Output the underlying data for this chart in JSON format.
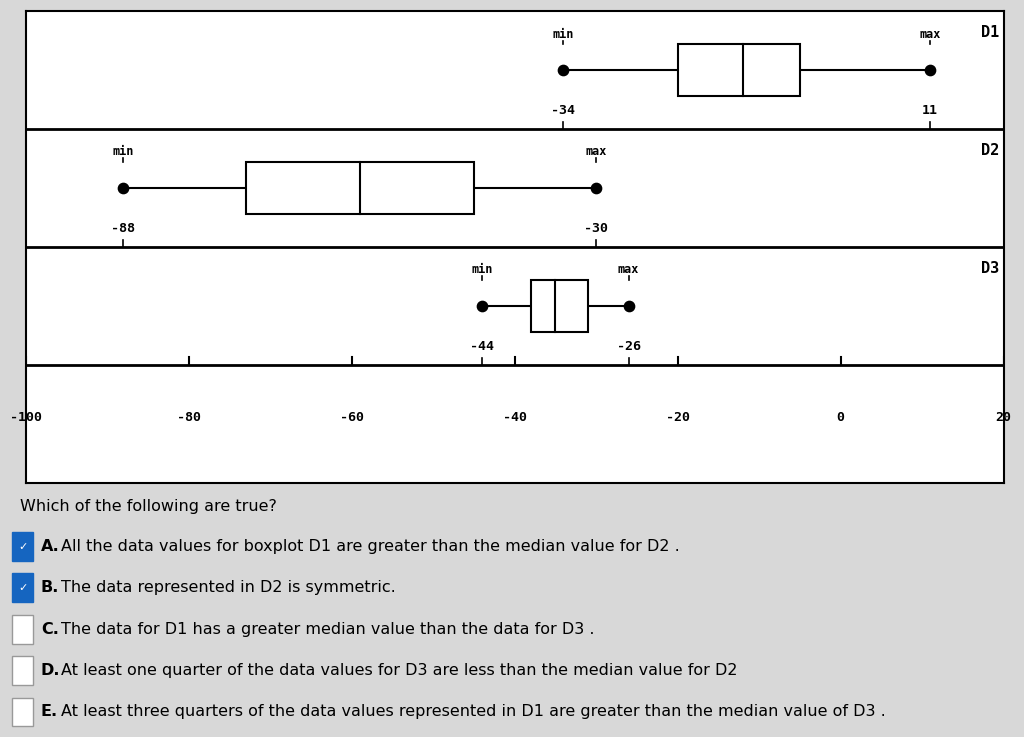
{
  "boxplots": [
    {
      "label": "D1",
      "whisker_min": -34,
      "whisker_max": 11,
      "q1": -20,
      "median": -12,
      "q3": -5,
      "min_label": "-34",
      "max_label": "11"
    },
    {
      "label": "D2",
      "whisker_min": -88,
      "whisker_max": -30,
      "q1": -73,
      "median": -59,
      "q3": -45,
      "min_label": "-88",
      "max_label": "-30"
    },
    {
      "label": "D3",
      "whisker_min": -44,
      "whisker_max": -26,
      "q1": -38,
      "median": -35,
      "q3": -31,
      "min_label": "-44",
      "max_label": "-26"
    }
  ],
  "xmin": -100,
  "xmax": 20,
  "xticks": [
    -100,
    -80,
    -60,
    -40,
    -20,
    0,
    20
  ],
  "bg_color": "#d8d8d8",
  "chart_bg": "#ffffff",
  "question_text": "Which of the following are true?",
  "options": [
    {
      "letter": "A",
      "text": "All the data values for boxplot D1 are greater than the median value for D2 .",
      "checked": true
    },
    {
      "letter": "B",
      "text": "The data represented in D2 is symmetric.",
      "checked": true
    },
    {
      "letter": "C",
      "text": "The data for D1 has a greater median value than the data for D3 .",
      "checked": false
    },
    {
      "letter": "D",
      "text": "At least one quarter of the data values for D3 are less than the median value for D2",
      "checked": false
    },
    {
      "letter": "E",
      "text": "At least three quarters of the data values represented in D1 are greater than the median value of D3 .",
      "checked": false
    }
  ]
}
